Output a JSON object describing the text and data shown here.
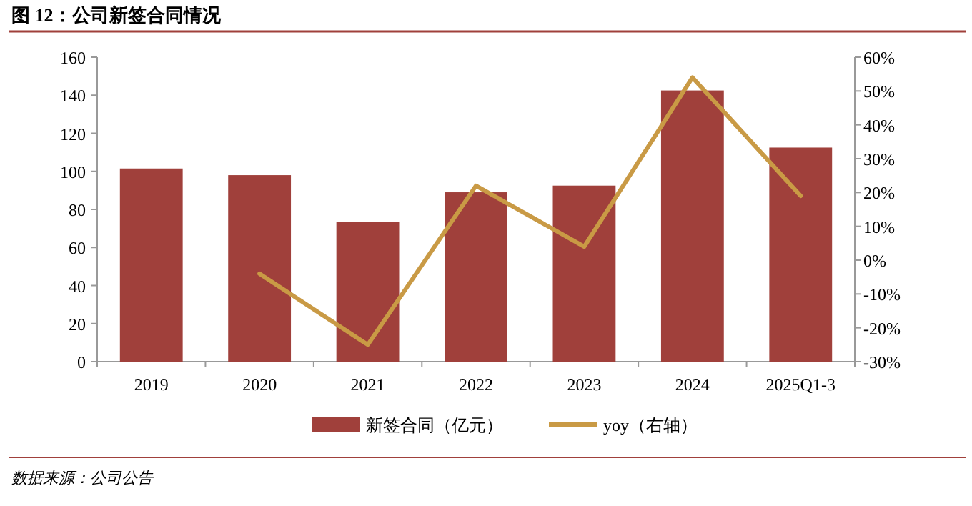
{
  "chart_data": {
    "type": "bar",
    "title": "图 12：公司新签合同情况",
    "categories": [
      "2019",
      "2020",
      "2021",
      "2022",
      "2023",
      "2024",
      "2025Q1-3"
    ],
    "series": [
      {
        "name": "新签合同（亿元）",
        "color": "#a0403b",
        "values": [
          101.5,
          98,
          73.5,
          89,
          92.5,
          142.5,
          112.5
        ]
      },
      {
        "name": "yoy（右轴）",
        "type": "line",
        "axis": "y2",
        "color": "#c99a45",
        "values": [
          null,
          -4,
          -25,
          22,
          4,
          54,
          19
        ]
      }
    ],
    "ylim": [
      0,
      160
    ],
    "yticks": [
      0,
      20,
      40,
      60,
      80,
      100,
      120,
      140,
      160
    ],
    "y2lim": [
      -30,
      60
    ],
    "y2ticks": [
      {
        "value": -30,
        "label": "-30%"
      },
      {
        "value": -20,
        "label": "-20%"
      },
      {
        "value": -10,
        "label": "-10%"
      },
      {
        "value": 0,
        "label": "0%"
      },
      {
        "value": 10,
        "label": "10%"
      },
      {
        "value": 20,
        "label": "20%"
      },
      {
        "value": 30,
        "label": "30%"
      },
      {
        "value": 40,
        "label": "40%"
      },
      {
        "value": 50,
        "label": "50%"
      },
      {
        "value": 60,
        "label": "60%"
      }
    ],
    "legend": "bottom",
    "grid": false,
    "annotations": [
      "数据来源：公司公告"
    ]
  }
}
